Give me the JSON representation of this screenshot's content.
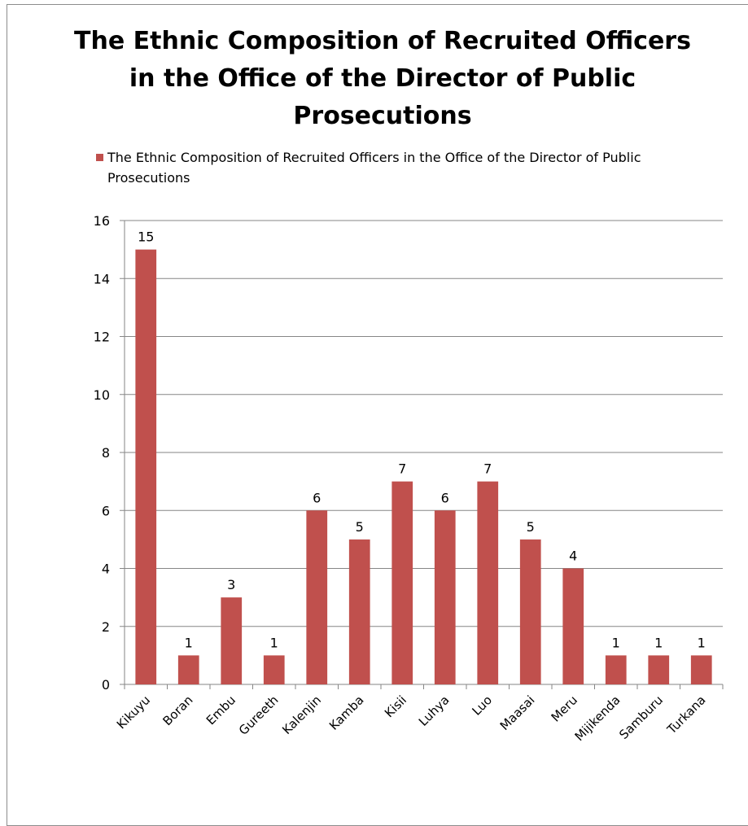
{
  "chart_data": {
    "type": "bar",
    "title": "The Ethnic Composition of Recruited Officers in the Office of the Director of Public Prosecutions",
    "title_lines": [
      "The Ethnic Composition of Recruited Officers",
      "in the Office of the Director of Public",
      "Prosecutions"
    ],
    "legend_position": "top",
    "categories": [
      "Kikuyu",
      "Boran",
      "Embu",
      "Gureeth",
      "Kalenjin",
      "Kamba",
      "Kisii",
      "Luhya",
      "Luo",
      "Maasai",
      "Meru",
      "Mijikenda",
      "Samburu",
      "Turkana"
    ],
    "series": [
      {
        "name": "The Ethnic Composition of Recruited Officers in the Office of the Director of Public Prosecutions",
        "values": [
          15,
          1,
          3,
          1,
          6,
          5,
          7,
          6,
          7,
          5,
          4,
          1,
          1,
          1
        ],
        "color": "#c0504d"
      }
    ],
    "ylim": [
      0,
      16
    ],
    "yticks": [
      0,
      2,
      4,
      6,
      8,
      10,
      12,
      14,
      16
    ],
    "grid": true,
    "data_labels": true,
    "xlabel": "",
    "ylabel": ""
  }
}
